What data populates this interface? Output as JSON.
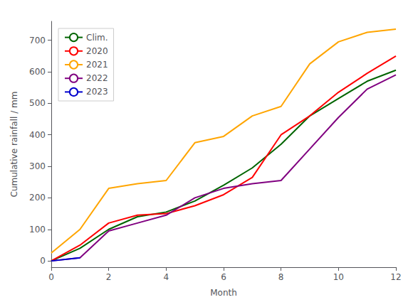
{
  "chart_data": {
    "type": "line",
    "title": "",
    "xlabel": "Month",
    "ylabel": "Cumulative rainfall / mm",
    "xlim": [
      0,
      12
    ],
    "ylim": [
      -20,
      760
    ],
    "xticks": [
      0,
      2,
      4,
      6,
      8,
      10,
      12
    ],
    "yticks": [
      0,
      100,
      200,
      300,
      400,
      500,
      600,
      700
    ],
    "grid": false,
    "legend": "upper left",
    "series": [
      {
        "name": "Clim.",
        "color": "#006400",
        "x": [
          0,
          1,
          2,
          3,
          4,
          5,
          6,
          7,
          8,
          9,
          10,
          11,
          12
        ],
        "values": [
          0,
          40,
          100,
          140,
          155,
          190,
          240,
          295,
          370,
          460,
          515,
          570,
          605
        ]
      },
      {
        "name": "2020",
        "color": "#ff0000",
        "x": [
          0,
          1,
          2,
          3,
          4,
          5,
          6,
          7,
          8,
          9,
          10,
          11,
          12
        ],
        "values": [
          0,
          50,
          120,
          145,
          150,
          175,
          210,
          265,
          400,
          460,
          535,
          595,
          650
        ]
      },
      {
        "name": "2021",
        "color": "#ffa500",
        "x": [
          0,
          1,
          2,
          3,
          4,
          5,
          6,
          7,
          8,
          9,
          10,
          11,
          12
        ],
        "values": [
          25,
          100,
          230,
          245,
          255,
          375,
          395,
          460,
          490,
          625,
          695,
          725,
          735
        ]
      },
      {
        "name": "2022",
        "color": "#800080",
        "x": [
          0,
          1,
          2,
          3,
          4,
          5,
          6,
          7,
          8,
          9,
          10,
          11,
          12
        ],
        "values": [
          0,
          10,
          95,
          120,
          145,
          200,
          230,
          245,
          255,
          355,
          455,
          545,
          590
        ]
      },
      {
        "name": "2023",
        "color": "#0000cd",
        "x": [
          0,
          1
        ],
        "values": [
          0,
          10
        ]
      }
    ]
  }
}
